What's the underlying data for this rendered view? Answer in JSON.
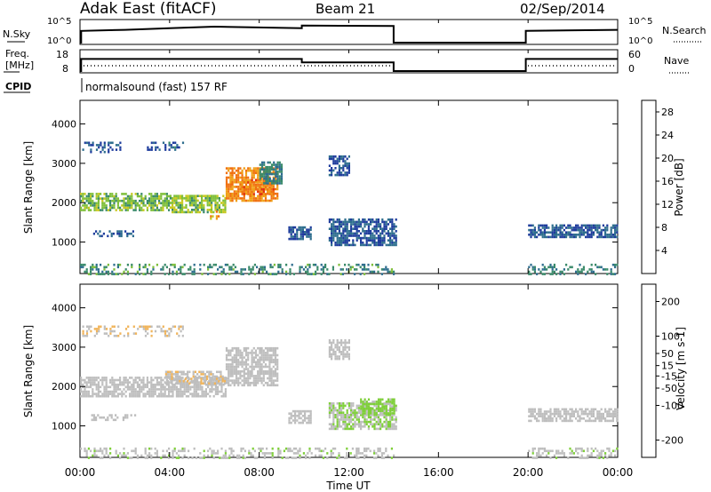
{
  "header": {
    "station": "Adak East (fitACF)",
    "beam": "Beam 21",
    "date": "02/Sep/2014",
    "program": "normalsound (fast) 157 RF"
  },
  "panel_labels": {
    "nsky": "N.Sky",
    "nsearch": "N.Search",
    "freq_line1": "Freq.",
    "freq_line2": "[MHz]",
    "nave": "Nave",
    "cpid": "CPID"
  },
  "x_axis": {
    "label": "Time UT",
    "ticks": [
      "00:00",
      "04:00",
      "08:00",
      "12:00",
      "16:00",
      "20:00",
      "00:00"
    ]
  },
  "colors": {
    "power_scale": [
      "#0a18e0",
      "#1e3c9c",
      "#2e6e8e",
      "#3a8a6a",
      "#7fbf3a",
      "#c8c81e",
      "#f0a018",
      "#f07010",
      "#e03010",
      "#e00000"
    ],
    "velocity_scale": [
      "#e00000",
      "#f05010",
      "#f08a18",
      "#f0b45a",
      "#bebebe",
      "#bebebe",
      "#7fcf3a",
      "#3c9a5a",
      "#2e6e8e",
      "#1a2ad8"
    ]
  },
  "chart_data": [
    {
      "type": "line",
      "name": "noise-panel",
      "x_unit": "hours UT",
      "left_axis": {
        "label": "N.Sky",
        "ticks": [
          "10^5",
          "10^0"
        ]
      },
      "right_axis": {
        "label": "N.Search",
        "ticks": [
          "10^5",
          "10^0"
        ]
      },
      "series": [
        {
          "values": [
            [
              0.0,
              0.0
            ],
            [
              0.05,
              0.0
            ],
            [
              0.05,
              0.55
            ],
            [
              2.0,
              0.6
            ],
            [
              4.0,
              0.68
            ],
            [
              6.0,
              0.75
            ],
            [
              9.9,
              0.68
            ],
            [
              9.9,
              0.8
            ],
            [
              14.0,
              0.78
            ],
            [
              14.0,
              0.0
            ],
            [
              19.9,
              0.0
            ],
            [
              19.9,
              0.55
            ],
            [
              24.0,
              0.6
            ]
          ]
        }
      ]
    },
    {
      "type": "line",
      "name": "frequency-panel",
      "x_unit": "hours UT",
      "left_axis": {
        "label": "Freq. [MHz]",
        "ticks": [
          18,
          8
        ],
        "ylim": [
          8,
          18
        ]
      },
      "right_axis": {
        "label": "Nave",
        "ticks": [
          60,
          0
        ],
        "ylim": [
          0,
          60
        ]
      },
      "series": [
        {
          "values": [
            [
              0.0,
              8.0
            ],
            [
              0.05,
              8.0
            ],
            [
              0.05,
              14.2
            ],
            [
              9.9,
              14.2
            ],
            [
              9.9,
              12.4
            ],
            [
              14.0,
              12.4
            ],
            [
              14.0,
              8.0
            ],
            [
              19.9,
              8.0
            ],
            [
              19.9,
              14.2
            ],
            [
              24.0,
              14.2
            ]
          ]
        }
      ]
    },
    {
      "type": "heatmap",
      "name": "power-panel",
      "ylabel": "Slant Range [km]",
      "yticks": [
        1000,
        2000,
        3000,
        4000
      ],
      "ylim": [
        200,
        4600
      ],
      "xlim": [
        0,
        24
      ],
      "colorbar": {
        "label": "Power [dB]",
        "ticks": [
          4,
          8,
          12,
          16,
          20,
          24,
          28
        ],
        "range": [
          0,
          30
        ]
      },
      "patches": [
        {
          "t0": 0.0,
          "t1": 4.0,
          "r0": 1800,
          "r1": 2250,
          "value": 13
        },
        {
          "t0": 4.0,
          "t1": 6.5,
          "r0": 1750,
          "r1": 2200,
          "value": 14
        },
        {
          "t0": 5.8,
          "t1": 6.3,
          "r0": 1550,
          "r1": 1800,
          "value": 19
        },
        {
          "t0": 6.5,
          "t1": 8.8,
          "r0": 2050,
          "r1": 2900,
          "value": 21
        },
        {
          "t0": 7.2,
          "t1": 8.6,
          "r0": 2200,
          "r1": 2600,
          "value": 22
        },
        {
          "t0": 2.9,
          "t1": 4.6,
          "r0": 3350,
          "r1": 3550,
          "value": 7
        },
        {
          "t0": 0.1,
          "t1": 1.8,
          "r0": 3300,
          "r1": 3550,
          "value": 6
        },
        {
          "t0": 0.5,
          "t1": 2.5,
          "r0": 1150,
          "r1": 1300,
          "value": 6
        },
        {
          "t0": 8.0,
          "t1": 9.0,
          "r0": 2500,
          "r1": 3050,
          "value": 9
        },
        {
          "t0": 9.3,
          "t1": 10.3,
          "r0": 1100,
          "r1": 1400,
          "value": 6
        },
        {
          "t0": 11.1,
          "t1": 14.1,
          "r0": 900,
          "r1": 1600,
          "value": 6
        },
        {
          "t0": 11.1,
          "t1": 12.0,
          "r0": 2700,
          "r1": 3200,
          "value": 6
        },
        {
          "t0": 20.0,
          "t1": 24.0,
          "r0": 1100,
          "r1": 1450,
          "value": 6
        },
        {
          "t0": 0.0,
          "t1": 14.0,
          "r0": 200,
          "r1": 450,
          "value": 10
        },
        {
          "t0": 20.0,
          "t1": 24.0,
          "r0": 200,
          "r1": 450,
          "value": 9
        }
      ]
    },
    {
      "type": "heatmap",
      "name": "velocity-panel",
      "ylabel": "Slant Range [km]",
      "yticks": [
        1000,
        2000,
        3000,
        4000
      ],
      "ylim": [
        200,
        4600
      ],
      "xlim": [
        0,
        24
      ],
      "colorbar": {
        "label": "Velocity [m s-1]",
        "ticks": [
          -200,
          -100,
          -50,
          -15,
          15,
          50,
          100,
          200
        ],
        "range": [
          -250,
          250
        ]
      },
      "patches": [
        {
          "t0": 0.0,
          "t1": 6.5,
          "r0": 1750,
          "r1": 2250,
          "value": 0
        },
        {
          "t0": 6.5,
          "t1": 8.8,
          "r0": 2050,
          "r1": 3000,
          "value": 0
        },
        {
          "t0": 3.8,
          "t1": 6.5,
          "r0": 2050,
          "r1": 2400,
          "value": -40
        },
        {
          "t0": 0.1,
          "t1": 4.6,
          "r0": 3300,
          "r1": 3550,
          "value": -40
        },
        {
          "t0": 0.5,
          "t1": 2.5,
          "r0": 1150,
          "r1": 1300,
          "value": 0
        },
        {
          "t0": 9.3,
          "t1": 10.3,
          "r0": 1100,
          "r1": 1400,
          "value": 0
        },
        {
          "t0": 11.1,
          "t1": 14.1,
          "r0": 900,
          "r1": 1600,
          "value": 45
        },
        {
          "t0": 12.5,
          "t1": 14.0,
          "r0": 1300,
          "r1": 1700,
          "value": 70
        },
        {
          "t0": 11.1,
          "t1": 12.0,
          "r0": 2700,
          "r1": 3200,
          "value": 0
        },
        {
          "t0": 20.0,
          "t1": 24.0,
          "r0": 1100,
          "r1": 1450,
          "value": 0
        },
        {
          "t0": 0.0,
          "t1": 14.0,
          "r0": 200,
          "r1": 450,
          "value": 30
        },
        {
          "t0": 20.0,
          "t1": 24.0,
          "r0": 200,
          "r1": 450,
          "value": 30
        }
      ]
    }
  ]
}
